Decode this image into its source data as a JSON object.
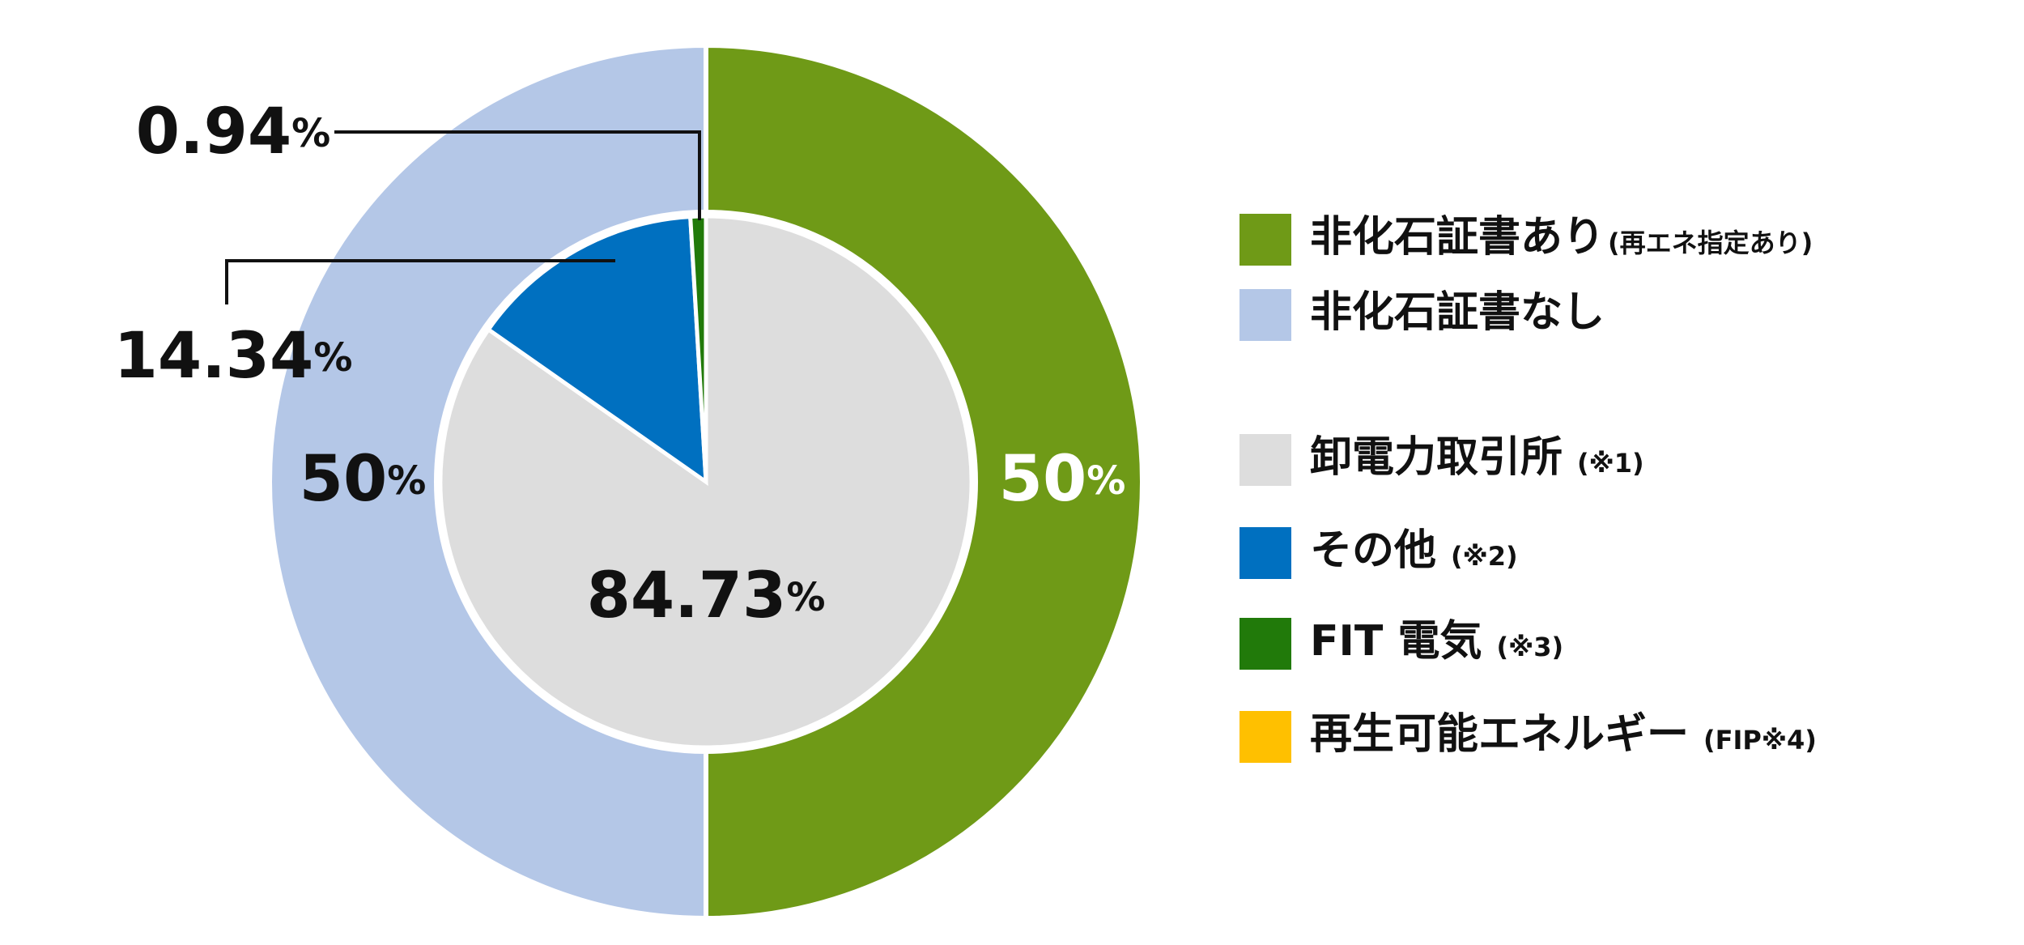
{
  "chart_data": [
    {
      "type": "donut",
      "categories": [
        "非化石証書あり",
        "非化石証書なし"
      ],
      "category_notes": [
        "(再エネ指定あり)",
        null
      ],
      "values": [
        50,
        50
      ],
      "value_labels": [
        "50%",
        "50%"
      ],
      "colors": [
        "#6f9a17",
        "#b4c7e7"
      ],
      "label_colors": [
        "#ffffff",
        "#111111"
      ]
    },
    {
      "type": "pie",
      "categories": [
        "卸電力取引所",
        "その他",
        "FIT 電気",
        "再生可能エネルギー"
      ],
      "category_notes": [
        "(※1)",
        "(※2)",
        "(※3)",
        "(FIP※4)"
      ],
      "values": [
        84.73,
        14.34,
        0.94,
        0
      ],
      "value_labels": [
        "84.73%",
        "14.34%",
        "0.94%",
        null
      ],
      "colors": [
        "#dddddd",
        "#0070c0",
        "#217a0a",
        "#ffc000"
      ],
      "label_colors": [
        "#111111",
        "#111111",
        "#111111",
        "#111111"
      ]
    }
  ]
}
